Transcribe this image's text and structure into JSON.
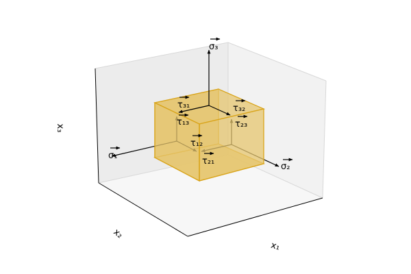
{
  "axes": {
    "x1_label": "x₁",
    "x2_label": "x₂",
    "x3_label": "x₃"
  },
  "vectors": {
    "sigma1": "σ₁",
    "sigma2": "σ₂",
    "sigma3": "σ₃",
    "tau12": "τ₁₂",
    "tau13": "τ₁₃",
    "tau21": "τ₂₁",
    "tau23": "τ₂₃",
    "tau31": "τ₃₁",
    "tau32": "τ₃₂"
  },
  "colors": {
    "cube_fill": "#e6c66f",
    "cube_edge": "#d9a41a",
    "arrows": "#000000"
  }
}
